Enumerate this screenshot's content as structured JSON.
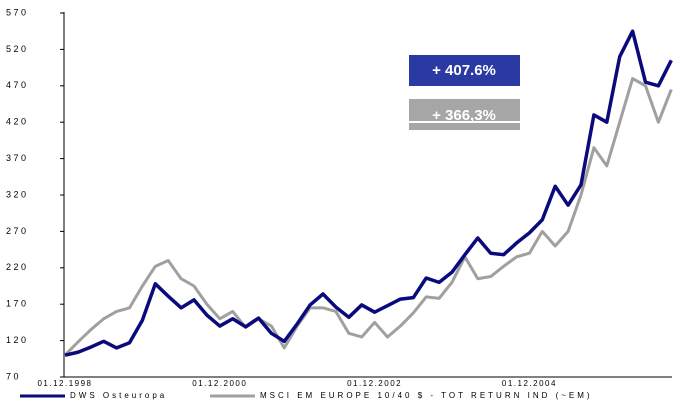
{
  "chart_data": {
    "type": "line",
    "annotations": [
      "+ 407.6%",
      "+ 366,3%"
    ],
    "categories": [
      "01.12.1998",
      null,
      null,
      null,
      null,
      null,
      null,
      null,
      null,
      null,
      null,
      null,
      "01.12.2000",
      null,
      null,
      null,
      null,
      null,
      null,
      null,
      null,
      null,
      null,
      null,
      "01.12.2002",
      null,
      null,
      null,
      null,
      null,
      null,
      null,
      null,
      null,
      null,
      null,
      "01.12.2004",
      null,
      null,
      null,
      null,
      null,
      null,
      null,
      null,
      null,
      null,
      null
    ],
    "series": [
      {
        "name": "DWS Osteuropa",
        "color": "#0a0a7d",
        "values": [
          100,
          104,
          111,
          119,
          110,
          117,
          148,
          198,
          181,
          165,
          176,
          155,
          140,
          150,
          139,
          151,
          130,
          119,
          143,
          169,
          184,
          166,
          152,
          169,
          159,
          168,
          177,
          179,
          206,
          200,
          214,
          238,
          261,
          240,
          238,
          254,
          268,
          286,
          332,
          306,
          334,
          430,
          420,
          510,
          545,
          475,
          470,
          505
        ]
      },
      {
        "name": "MSCI EM EUROPE 10/40 $ - TOT RETURN IND (~EM)",
        "color": "#a0a0a0",
        "values": [
          100,
          118,
          135,
          150,
          160,
          165,
          195,
          222,
          230,
          205,
          195,
          170,
          150,
          160,
          138,
          150,
          140,
          110,
          140,
          165,
          165,
          160,
          130,
          125,
          145,
          125,
          140,
          158,
          180,
          178,
          200,
          235,
          205,
          208,
          222,
          235,
          240,
          270,
          250,
          270,
          320,
          385,
          360,
          420,
          480,
          470,
          420,
          465
        ]
      }
    ],
    "ylim": [
      70,
      570
    ],
    "yticks": [
      70,
      120,
      170,
      220,
      270,
      320,
      370,
      420,
      470,
      520,
      570
    ]
  }
}
